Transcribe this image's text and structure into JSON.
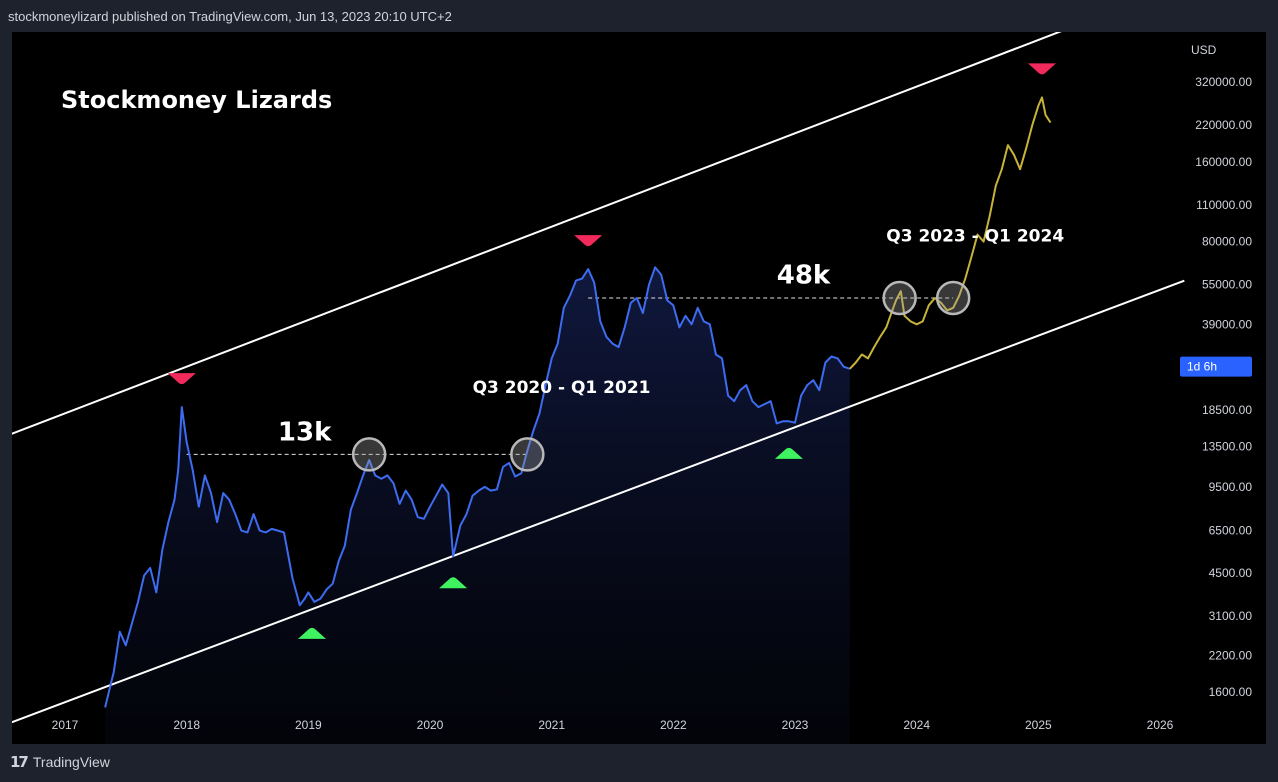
{
  "header": {
    "text": "stockmoneylizard published on TradingView.com, Jun 13, 2023 20:10 UTC+2"
  },
  "footer": {
    "logo": "17",
    "brand": "TradingView"
  },
  "chart_data": {
    "type": "line",
    "title": "Stockmoney Lizards",
    "y_axis": {
      "unit_label": "USD",
      "scale": "log",
      "ticks": [
        320000,
        220000,
        160000,
        110000,
        80000,
        55000,
        39000,
        18500,
        13500,
        9500,
        6500,
        4500,
        3100,
        2200,
        1600
      ],
      "tick_labels": [
        "320000.00",
        "220000.00",
        "160000.00",
        "110000.00",
        "80000.00",
        "55000.00",
        "39000.00",
        "18500.00",
        "13500.00",
        "9500.00",
        "6500.00",
        "4500.00",
        "3100.00",
        "2200.00",
        "1600.00"
      ],
      "current_badge": "1d 6h",
      "current_badge_value": 27000
    },
    "x_axis": {
      "ticks": [
        2017,
        2018,
        2019,
        2020,
        2021,
        2022,
        2023,
        2024,
        2025,
        2026
      ],
      "tick_labels": [
        "2017",
        "2018",
        "2019",
        "2020",
        "2021",
        "2022",
        "2023",
        "2024",
        "2025",
        "2026"
      ]
    },
    "series": [
      {
        "color": "#3d6cf0",
        "values": [
          [
            2017.33,
            1400
          ],
          [
            2017.4,
            1900
          ],
          [
            2017.45,
            2700
          ],
          [
            2017.5,
            2400
          ],
          [
            2017.55,
            2900
          ],
          [
            2017.6,
            3500
          ],
          [
            2017.65,
            4400
          ],
          [
            2017.7,
            4700
          ],
          [
            2017.75,
            3800
          ],
          [
            2017.8,
            5500
          ],
          [
            2017.85,
            7000
          ],
          [
            2017.9,
            8500
          ],
          [
            2017.93,
            11000
          ],
          [
            2017.96,
            19000
          ],
          [
            2018.0,
            14000
          ],
          [
            2018.05,
            11000
          ],
          [
            2018.1,
            8000
          ],
          [
            2018.15,
            10500
          ],
          [
            2018.2,
            9000
          ],
          [
            2018.25,
            7000
          ],
          [
            2018.3,
            9000
          ],
          [
            2018.35,
            8500
          ],
          [
            2018.4,
            7500
          ],
          [
            2018.45,
            6500
          ],
          [
            2018.5,
            6400
          ],
          [
            2018.55,
            7500
          ],
          [
            2018.6,
            6500
          ],
          [
            2018.65,
            6400
          ],
          [
            2018.7,
            6600
          ],
          [
            2018.75,
            6500
          ],
          [
            2018.8,
            6400
          ],
          [
            2018.87,
            4300
          ],
          [
            2018.93,
            3400
          ],
          [
            2018.97,
            3600
          ],
          [
            2019.0,
            3800
          ],
          [
            2019.05,
            3500
          ],
          [
            2019.1,
            3600
          ],
          [
            2019.15,
            3900
          ],
          [
            2019.2,
            4100
          ],
          [
            2019.25,
            5000
          ],
          [
            2019.3,
            5700
          ],
          [
            2019.35,
            7800
          ],
          [
            2019.4,
            9000
          ],
          [
            2019.45,
            10500
          ],
          [
            2019.5,
            12000
          ],
          [
            2019.55,
            10500
          ],
          [
            2019.6,
            10200
          ],
          [
            2019.65,
            10500
          ],
          [
            2019.7,
            9800
          ],
          [
            2019.75,
            8200
          ],
          [
            2019.8,
            9200
          ],
          [
            2019.85,
            8500
          ],
          [
            2019.9,
            7300
          ],
          [
            2019.95,
            7200
          ],
          [
            2020.0,
            8000
          ],
          [
            2020.05,
            8800
          ],
          [
            2020.1,
            9700
          ],
          [
            2020.15,
            9000
          ],
          [
            2020.19,
            5200
          ],
          [
            2020.25,
            6800
          ],
          [
            2020.3,
            7500
          ],
          [
            2020.35,
            8800
          ],
          [
            2020.4,
            9200
          ],
          [
            2020.45,
            9500
          ],
          [
            2020.5,
            9200
          ],
          [
            2020.55,
            9300
          ],
          [
            2020.6,
            11300
          ],
          [
            2020.65,
            11700
          ],
          [
            2020.7,
            10400
          ],
          [
            2020.75,
            10700
          ],
          [
            2020.8,
            13000
          ],
          [
            2020.85,
            15500
          ],
          [
            2020.9,
            18000
          ],
          [
            2020.95,
            23000
          ],
          [
            2021.0,
            29000
          ],
          [
            2021.05,
            33000
          ],
          [
            2021.1,
            45000
          ],
          [
            2021.15,
            50000
          ],
          [
            2021.2,
            57000
          ],
          [
            2021.25,
            58000
          ],
          [
            2021.3,
            63000
          ],
          [
            2021.35,
            56000
          ],
          [
            2021.4,
            40000
          ],
          [
            2021.45,
            35000
          ],
          [
            2021.5,
            33000
          ],
          [
            2021.55,
            32000
          ],
          [
            2021.6,
            38000
          ],
          [
            2021.65,
            47000
          ],
          [
            2021.7,
            49000
          ],
          [
            2021.75,
            43000
          ],
          [
            2021.8,
            55000
          ],
          [
            2021.85,
            64000
          ],
          [
            2021.9,
            60000
          ],
          [
            2021.95,
            48000
          ],
          [
            2022.0,
            46000
          ],
          [
            2022.05,
            38000
          ],
          [
            2022.1,
            42000
          ],
          [
            2022.15,
            39000
          ],
          [
            2022.2,
            45000
          ],
          [
            2022.25,
            40000
          ],
          [
            2022.3,
            39000
          ],
          [
            2022.35,
            30000
          ],
          [
            2022.4,
            29000
          ],
          [
            2022.45,
            21000
          ],
          [
            2022.5,
            20000
          ],
          [
            2022.55,
            22000
          ],
          [
            2022.6,
            23000
          ],
          [
            2022.65,
            20000
          ],
          [
            2022.7,
            19000
          ],
          [
            2022.75,
            19500
          ],
          [
            2022.8,
            20000
          ],
          [
            2022.85,
            16500
          ],
          [
            2022.9,
            16800
          ],
          [
            2022.95,
            16800
          ],
          [
            2023.0,
            16600
          ],
          [
            2023.05,
            21000
          ],
          [
            2023.1,
            23000
          ],
          [
            2023.15,
            24000
          ],
          [
            2023.2,
            22000
          ],
          [
            2023.25,
            28000
          ],
          [
            2023.3,
            29500
          ],
          [
            2023.35,
            29000
          ],
          [
            2023.4,
            27000
          ],
          [
            2023.45,
            26500
          ]
        ]
      },
      {
        "color": "#c8b33a",
        "values": [
          [
            2023.45,
            26500
          ],
          [
            2023.5,
            28000
          ],
          [
            2023.55,
            30000
          ],
          [
            2023.6,
            29000
          ],
          [
            2023.65,
            32000
          ],
          [
            2023.7,
            35000
          ],
          [
            2023.75,
            38000
          ],
          [
            2023.8,
            44000
          ],
          [
            2023.83,
            48000
          ],
          [
            2023.87,
            52000
          ],
          [
            2023.9,
            42000
          ],
          [
            2023.95,
            40000
          ],
          [
            2024.0,
            39000
          ],
          [
            2024.05,
            40000
          ],
          [
            2024.1,
            46000
          ],
          [
            2024.15,
            49000
          ],
          [
            2024.2,
            47000
          ],
          [
            2024.25,
            44000
          ],
          [
            2024.3,
            45000
          ],
          [
            2024.35,
            50000
          ],
          [
            2024.4,
            58000
          ],
          [
            2024.45,
            70000
          ],
          [
            2024.5,
            85000
          ],
          [
            2024.55,
            80000
          ],
          [
            2024.6,
            100000
          ],
          [
            2024.65,
            130000
          ],
          [
            2024.7,
            150000
          ],
          [
            2024.75,
            185000
          ],
          [
            2024.8,
            170000
          ],
          [
            2024.85,
            150000
          ],
          [
            2024.9,
            180000
          ],
          [
            2024.95,
            220000
          ],
          [
            2025.0,
            260000
          ],
          [
            2025.03,
            280000
          ],
          [
            2025.06,
            240000
          ],
          [
            2025.1,
            225000
          ]
        ]
      }
    ],
    "channel": [
      {
        "name": "upper",
        "from": [
          2016.0,
          12000
        ],
        "to": [
          2026.2,
          750000
        ]
      },
      {
        "name": "lower",
        "from": [
          2016.5,
          1200
        ],
        "to": [
          2026.2,
          57000
        ]
      }
    ],
    "markers_top": [
      [
        2017.96,
        19000
      ],
      [
        2021.3,
        63000
      ],
      [
        2025.03,
        280000
      ]
    ],
    "markers_bottom": [
      [
        2019.03,
        3350
      ],
      [
        2020.19,
        5200
      ],
      [
        2022.95,
        16000
      ]
    ],
    "circles": [
      [
        2019.5,
        12600
      ],
      [
        2020.8,
        12600
      ],
      [
        2023.86,
        49000
      ],
      [
        2024.3,
        49000
      ]
    ],
    "dashed_levels": [
      {
        "from": 2018.0,
        "to": 2020.8,
        "value": 12600
      },
      {
        "from": 2021.3,
        "to": 2024.3,
        "value": 49000
      }
    ],
    "annotations": [
      {
        "text": "13k",
        "x": 2018.75,
        "y": 14200
      },
      {
        "text": "Q3 2020 - Q1 2021",
        "x": 2020.35,
        "y": 21500
      },
      {
        "text": "48k",
        "x": 2022.85,
        "y": 55500
      },
      {
        "text": "Q3 2023 - Q1 2024",
        "x": 2023.75,
        "y": 80000
      }
    ]
  }
}
